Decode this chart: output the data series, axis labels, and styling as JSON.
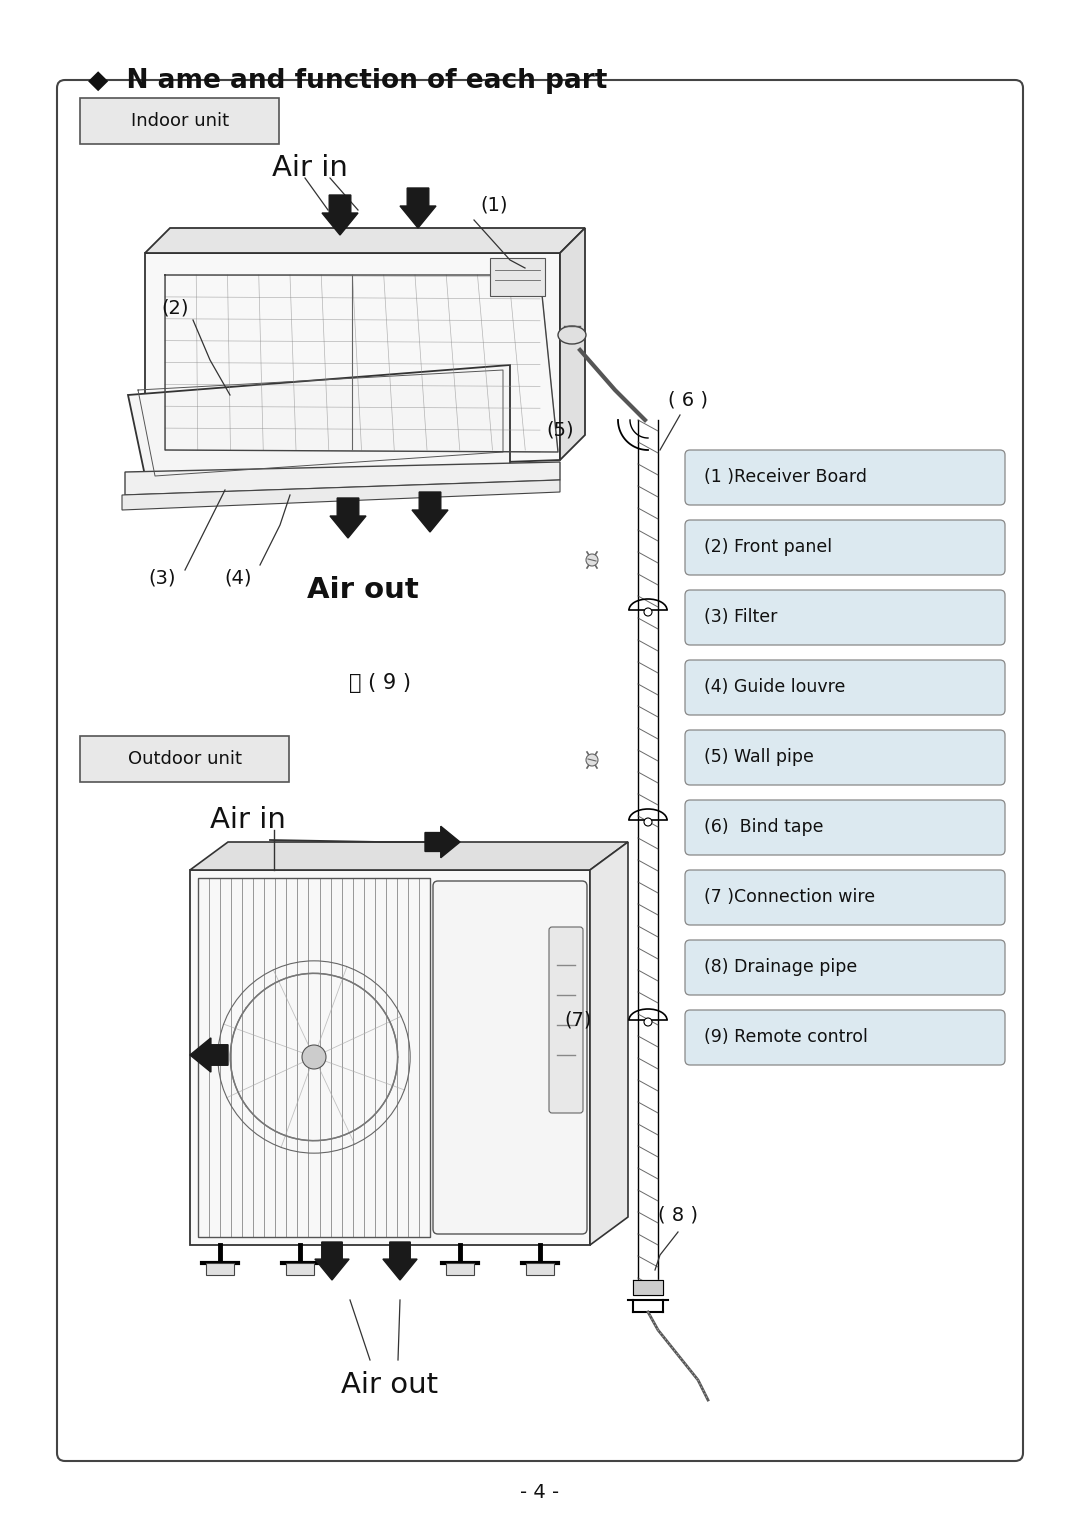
{
  "title": "◆  N ame and function of each part",
  "page_number": "- 4 -",
  "bg_color": "#ffffff",
  "border_color": "#555555",
  "indoor_label": "Indoor unit",
  "outdoor_label": "Outdoor unit",
  "legend_items": [
    "(1 )Receiver Board",
    "(2) Front panel",
    "(3) Filter",
    "(4) Guide louvre",
    "(5) Wall pipe",
    "(6)  Bind tape",
    "(7 )Connection wire",
    "(8) Drainage pipe",
    "(9) Remote control"
  ]
}
